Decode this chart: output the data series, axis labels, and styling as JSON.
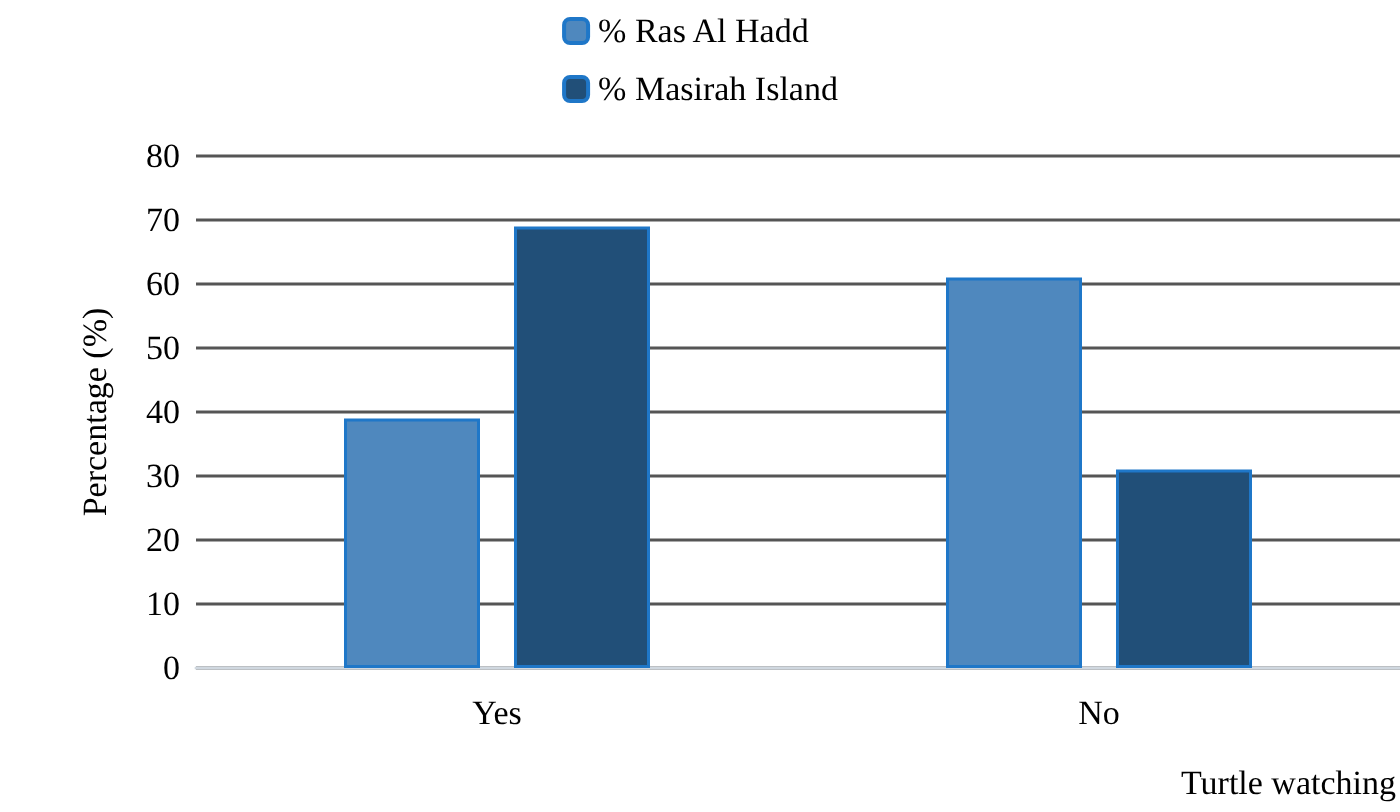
{
  "chart_data": {
    "type": "bar",
    "xlabel": "Turtle watching",
    "ylabel": "Percentage (%)",
    "categories": [
      "Yes",
      "No"
    ],
    "series": [
      {
        "name": "% Ras Al Hadd",
        "color": "#4f88be",
        "values": [
          39,
          61
        ]
      },
      {
        "name": "% Masirah Island",
        "color": "#214f78",
        "values": [
          69,
          31
        ]
      }
    ],
    "ylim": [
      0,
      80
    ],
    "yticks": [
      0,
      10,
      20,
      30,
      40,
      50,
      60,
      70,
      80
    ],
    "grid": "y",
    "legend": "top"
  }
}
